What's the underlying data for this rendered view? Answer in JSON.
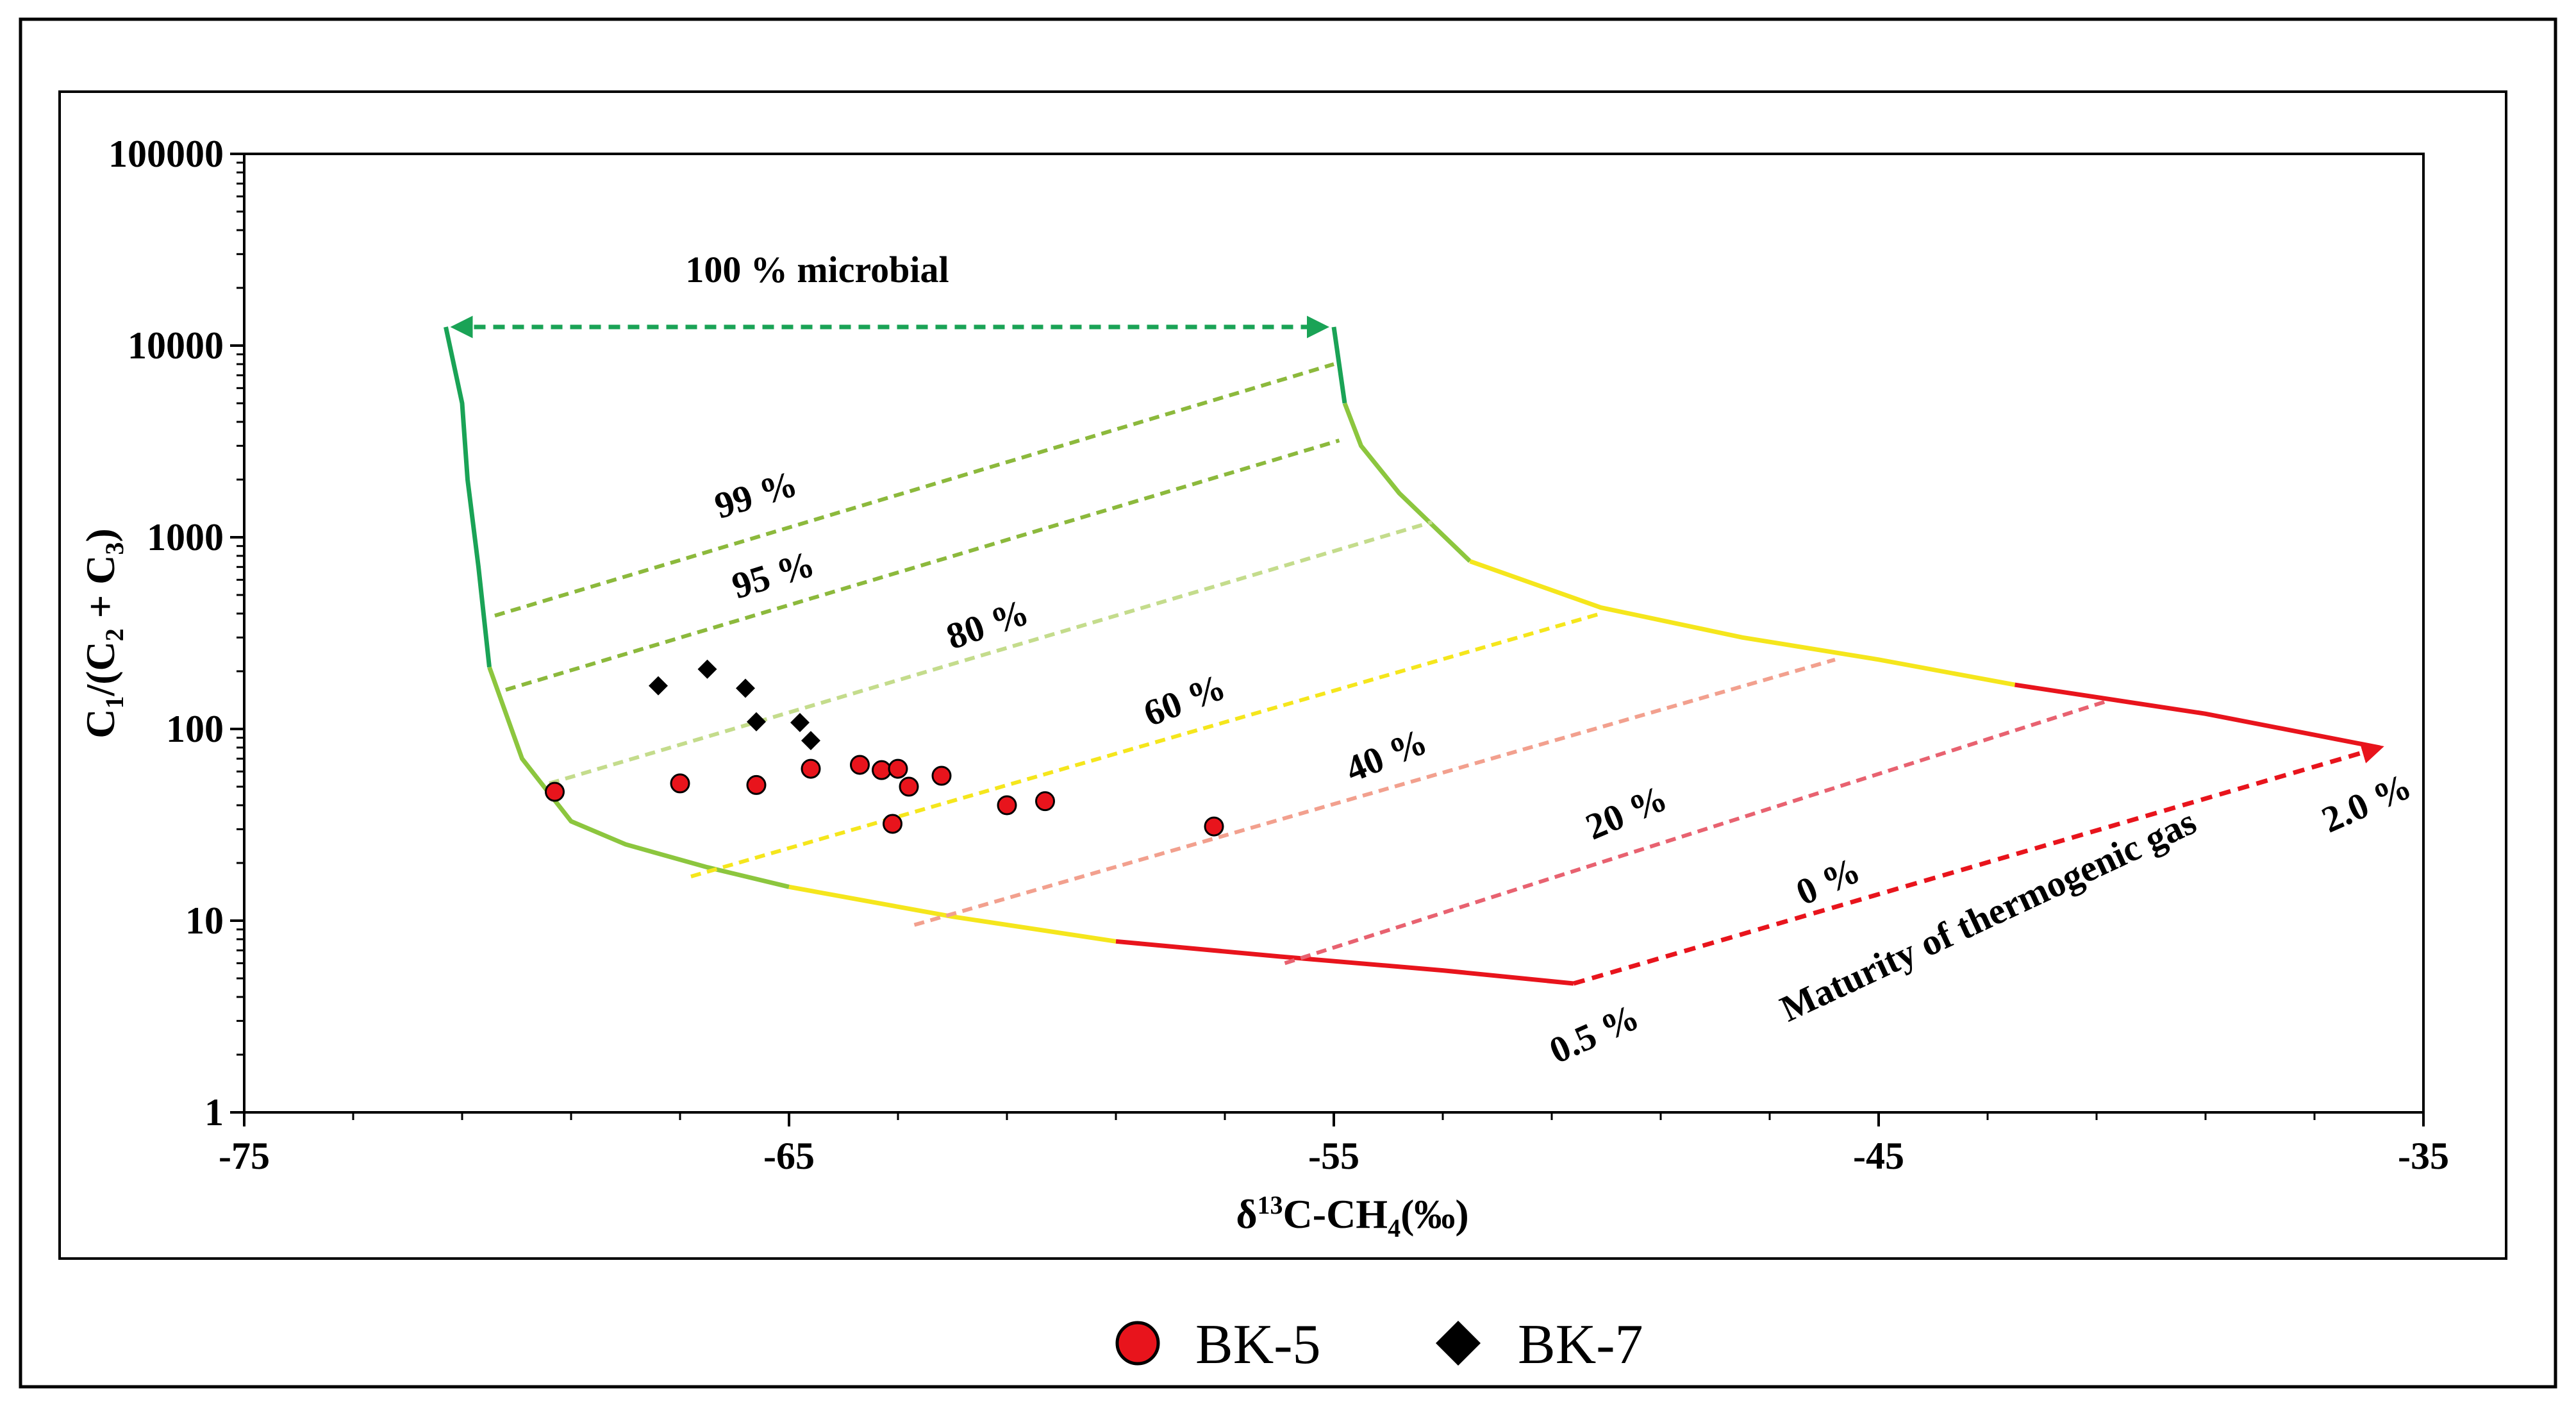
{
  "chart_data": {
    "type": "scatter",
    "title": "",
    "xlabel": "δ13C-CH4 (‰)",
    "ylabel": "C1/(C2 + C3)",
    "xlim": [
      -75,
      -35
    ],
    "ylim": [
      1,
      100000
    ],
    "yscale": "log",
    "x_ticks": [
      -75,
      -65,
      -55,
      -45,
      -35
    ],
    "x_tick_labels": [
      "-75",
      "-65",
      "-55",
      "-45",
      "-35"
    ],
    "y_ticks": [
      1,
      10,
      100,
      1000,
      10000,
      100000
    ],
    "y_tick_labels": [
      "1",
      "10",
      "100",
      "1000",
      "10000",
      "100000"
    ],
    "legend": {
      "position": "bottom",
      "entries": [
        {
          "label": "BK-5",
          "marker": "circle",
          "color": "#e8141c"
        },
        {
          "label": "BK-7",
          "marker": "diamond",
          "color": "#000000"
        }
      ]
    },
    "series": [
      {
        "name": "BK-5",
        "marker": "circle",
        "color": "#e8141c",
        "points": [
          {
            "x": -69.3,
            "y": 47
          },
          {
            "x": -67.0,
            "y": 52
          },
          {
            "x": -65.6,
            "y": 51
          },
          {
            "x": -64.6,
            "y": 62
          },
          {
            "x": -63.7,
            "y": 65
          },
          {
            "x": -63.3,
            "y": 61
          },
          {
            "x": -63.0,
            "y": 62
          },
          {
            "x": -62.8,
            "y": 50
          },
          {
            "x": -62.2,
            "y": 57
          },
          {
            "x": -61.0,
            "y": 40
          },
          {
            "x": -60.3,
            "y": 42
          },
          {
            "x": -63.1,
            "y": 32
          },
          {
            "x": -57.2,
            "y": 31
          }
        ]
      },
      {
        "name": "BK-7",
        "marker": "diamond",
        "color": "#000000",
        "points": [
          {
            "x": -67.4,
            "y": 168
          },
          {
            "x": -66.5,
            "y": 205
          },
          {
            "x": -65.8,
            "y": 163
          },
          {
            "x": -65.6,
            "y": 109
          },
          {
            "x": -64.8,
            "y": 108
          },
          {
            "x": -64.6,
            "y": 87
          }
        ]
      }
    ],
    "envelope": {
      "upper_left": [
        [
          -71.3,
          12500
        ],
        [
          -71.0,
          5000
        ],
        [
          -70.9,
          2000
        ],
        [
          -70.7,
          700
        ],
        [
          -70.5,
          210
        ]
      ],
      "lower_left": [
        [
          -70.5,
          210
        ],
        [
          -69.9,
          70
        ],
        [
          -69.0,
          33
        ],
        [
          -68.0,
          25
        ],
        [
          -66.5,
          19
        ],
        [
          -65.0,
          15
        ]
      ],
      "bottom_curve": [
        [
          -65.0,
          15
        ],
        [
          -62.0,
          10.5
        ],
        [
          -59.0,
          7.8
        ],
        [
          -56.0,
          6.5
        ],
        [
          -53.0,
          5.5
        ],
        [
          -50.6,
          4.7
        ]
      ],
      "upper_right": [
        [
          -55.0,
          12500
        ],
        [
          -54.8,
          5000
        ],
        [
          -54.5,
          3000
        ],
        [
          -53.8,
          1700
        ],
        [
          -52.5,
          750
        ],
        [
          -50.1,
          430
        ],
        [
          -47.5,
          300
        ],
        [
          -45.0,
          230
        ],
        [
          -42.5,
          170
        ],
        [
          -39.0,
          120
        ],
        [
          -35.8,
          80
        ]
      ],
      "thermogenic_arrow": {
        "from": [
          -50.6,
          4.7
        ],
        "to": [
          -35.8,
          80
        ]
      },
      "microbial_arrow": {
        "from": [
          -71.3,
          12500
        ],
        "to": [
          -55.0,
          12500
        ]
      }
    },
    "mixing_lines": [
      {
        "label": "99 %",
        "from": [
          -70.4,
          390
        ],
        "to": [
          -55.0,
          8000
        ]
      },
      {
        "label": "95 %",
        "from": [
          -70.2,
          160
        ],
        "to": [
          -54.9,
          3200
        ]
      },
      {
        "label": "80 %",
        "from": [
          -69.4,
          52
        ],
        "to": [
          -53.2,
          1200
        ]
      },
      {
        "label": "60 %",
        "from": [
          -66.8,
          17
        ],
        "to": [
          -50.1,
          400
        ]
      },
      {
        "label": "40 %",
        "from": [
          -62.7,
          9.5
        ],
        "to": [
          -45.8,
          230
        ]
      },
      {
        "label": "20 %",
        "from": [
          -55.9,
          6
        ],
        "to": [
          -40.8,
          140
        ]
      }
    ],
    "annotations": {
      "microbial": "100 % microbial",
      "p99": "99 %",
      "p95": "95 %",
      "p80": "80 %",
      "p60": "60 %",
      "p40": "40 %",
      "p20": "20 %",
      "p0": "0 %",
      "maturity_low": "0.5 %",
      "maturity_high": "2.0 %",
      "maturity_title": "Maturity of thermogenic gas"
    }
  }
}
